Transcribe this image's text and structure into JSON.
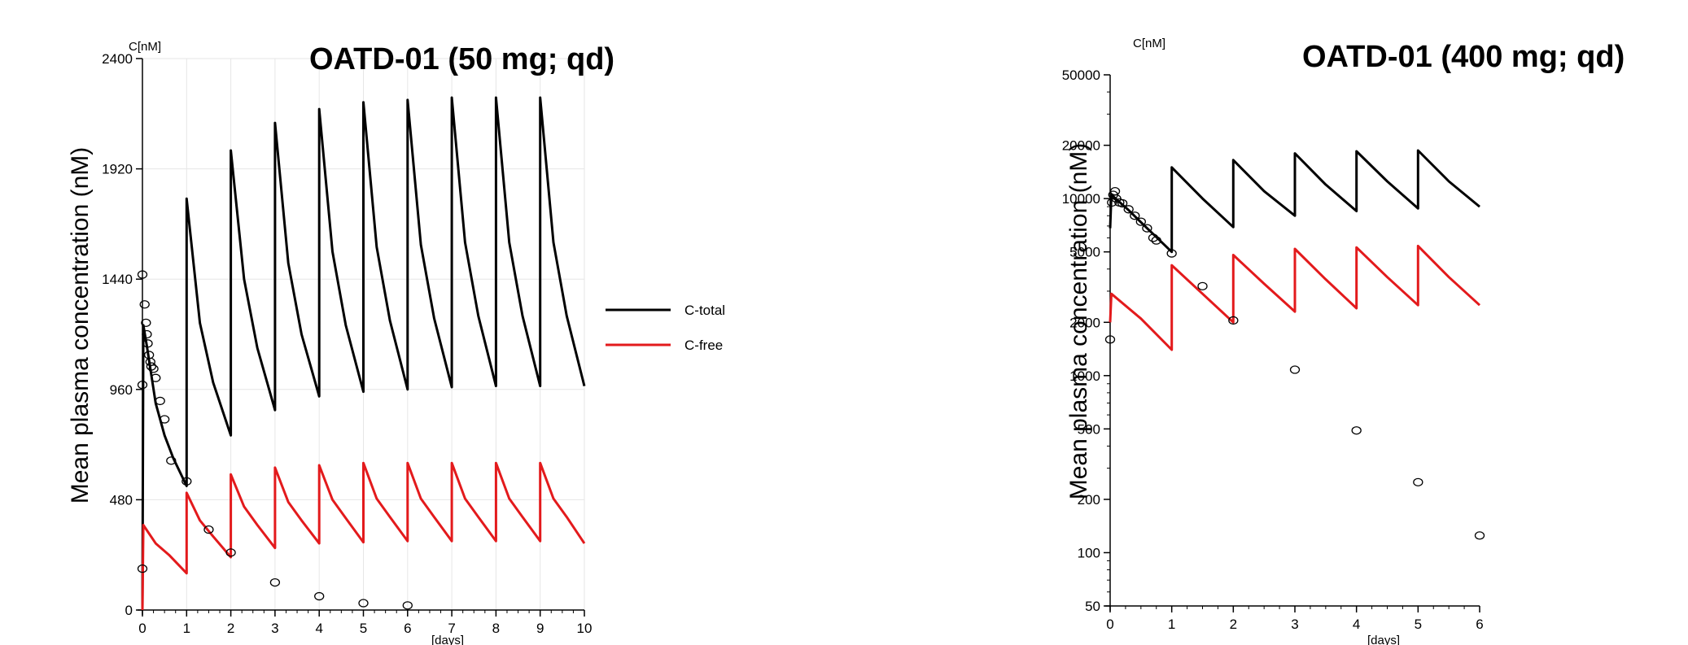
{
  "chart_data": [
    {
      "type": "line",
      "title": "OATD-01 (50 mg; qd)",
      "ylabel": "Mean plasma concentration (nM)",
      "yunit": "C[nM]",
      "xunit": "[days]",
      "xlim": [
        0,
        10
      ],
      "ylim": [
        0,
        2400
      ],
      "yscale": "linear",
      "xticks": [
        "0",
        "1",
        "2",
        "3",
        "4",
        "5",
        "6",
        "7",
        "8",
        "9",
        "10"
      ],
      "yticks": [
        "0",
        "480",
        "960",
        "1440",
        "1920",
        "2400"
      ],
      "grid": true,
      "legend": {
        "position": "right",
        "entries": [
          {
            "label": "C-total",
            "color": "#000000"
          },
          {
            "label": "C-free",
            "color": "#e31a1c"
          }
        ]
      },
      "series": [
        {
          "name": "C-total",
          "color": "#000000",
          "points": [
            [
              0,
              0
            ],
            [
              0.02,
              1240
            ],
            [
              0.1,
              1150
            ],
            [
              0.3,
              900
            ],
            [
              0.5,
              760
            ],
            [
              0.7,
              660
            ],
            [
              1.0,
              540
            ],
            [
              1.0,
              1790
            ],
            [
              1.3,
              1250
            ],
            [
              1.6,
              990
            ],
            [
              2.0,
              760
            ],
            [
              2.0,
              2000
            ],
            [
              2.3,
              1440
            ],
            [
              2.6,
              1140
            ],
            [
              3.0,
              870
            ],
            [
              3.0,
              2120
            ],
            [
              3.3,
              1510
            ],
            [
              3.6,
              1200
            ],
            [
              4.0,
              930
            ],
            [
              4.0,
              2180
            ],
            [
              4.3,
              1560
            ],
            [
              4.6,
              1240
            ],
            [
              5.0,
              950
            ],
            [
              5.0,
              2210
            ],
            [
              5.3,
              1580
            ],
            [
              5.6,
              1260
            ],
            [
              6.0,
              960
            ],
            [
              6.0,
              2220
            ],
            [
              6.3,
              1590
            ],
            [
              6.6,
              1270
            ],
            [
              7.0,
              970
            ],
            [
              7.0,
              2230
            ],
            [
              7.3,
              1600
            ],
            [
              7.6,
              1280
            ],
            [
              8.0,
              975
            ],
            [
              8.0,
              2230
            ],
            [
              8.3,
              1600
            ],
            [
              8.6,
              1280
            ],
            [
              9.0,
              975
            ],
            [
              9.0,
              2230
            ],
            [
              9.3,
              1600
            ],
            [
              9.6,
              1280
            ],
            [
              10.0,
              975
            ]
          ]
        },
        {
          "name": "C-free",
          "color": "#e31a1c",
          "points": [
            [
              0,
              0
            ],
            [
              0.02,
              370
            ],
            [
              0.3,
              290
            ],
            [
              0.6,
              240
            ],
            [
              1.0,
              160
            ],
            [
              1.0,
              510
            ],
            [
              1.3,
              390
            ],
            [
              1.6,
              320
            ],
            [
              2.0,
              230
            ],
            [
              2.0,
              590
            ],
            [
              2.3,
              450
            ],
            [
              2.6,
              370
            ],
            [
              3.0,
              270
            ],
            [
              3.0,
              620
            ],
            [
              3.3,
              470
            ],
            [
              3.6,
              390
            ],
            [
              4.0,
              290
            ],
            [
              4.0,
              630
            ],
            [
              4.3,
              480
            ],
            [
              4.6,
              400
            ],
            [
              5.0,
              295
            ],
            [
              5.0,
              640
            ],
            [
              5.3,
              485
            ],
            [
              5.6,
              405
            ],
            [
              6.0,
              300
            ],
            [
              6.0,
              640
            ],
            [
              6.3,
              485
            ],
            [
              6.6,
              405
            ],
            [
              7.0,
              300
            ],
            [
              7.0,
              640
            ],
            [
              7.3,
              485
            ],
            [
              7.6,
              405
            ],
            [
              8.0,
              300
            ],
            [
              8.0,
              640
            ],
            [
              8.3,
              485
            ],
            [
              8.6,
              405
            ],
            [
              9.0,
              300
            ],
            [
              9.0,
              640
            ],
            [
              9.3,
              485
            ],
            [
              9.6,
              405
            ],
            [
              10.0,
              290
            ]
          ]
        },
        {
          "name": "observed",
          "marker": "circle",
          "points": [
            [
              0.0,
              1460
            ],
            [
              0.05,
              1330
            ],
            [
              0.08,
              1250
            ],
            [
              0.1,
              1200
            ],
            [
              0.12,
              1160
            ],
            [
              0.15,
              1110
            ],
            [
              0.18,
              1080
            ],
            [
              0.2,
              1060
            ],
            [
              0.25,
              1050
            ],
            [
              0.3,
              1010
            ],
            [
              0.4,
              910
            ],
            [
              0.5,
              830
            ],
            [
              0.65,
              650
            ],
            [
              1.0,
              560
            ],
            [
              1.5,
              350
            ],
            [
              2.0,
              250
            ],
            [
              3.0,
              120
            ],
            [
              4.0,
              60
            ],
            [
              5.0,
              30
            ],
            [
              6.0,
              20
            ],
            [
              0.0,
              980
            ],
            [
              0.0,
              180
            ]
          ]
        }
      ]
    },
    {
      "type": "line",
      "title": "OATD-01 (400 mg; qd)",
      "ylabel": "Mean plasma concentration (nM)",
      "yunit": "C[nM]",
      "xunit": "[days]",
      "xlim": [
        0,
        6
      ],
      "ylim": [
        50,
        50000
      ],
      "yscale": "log",
      "xticks": [
        "0",
        "1",
        "2",
        "3",
        "4",
        "5",
        "6"
      ],
      "yticks": [
        "50",
        "100",
        "200",
        "500",
        "1000",
        "2000",
        "5000",
        "10000",
        "20000",
        "50000"
      ],
      "grid": false,
      "series": [
        {
          "name": "C-total",
          "color": "#000000",
          "points": [
            [
              0,
              6800
            ],
            [
              0.02,
              10500
            ],
            [
              0.3,
              8600
            ],
            [
              0.6,
              6800
            ],
            [
              1.0,
              5000
            ],
            [
              1.0,
              15000
            ],
            [
              1.5,
              10000
            ],
            [
              2.0,
              6900
            ],
            [
              2.0,
              16500
            ],
            [
              2.5,
              11000
            ],
            [
              3.0,
              8000
            ],
            [
              3.0,
              18000
            ],
            [
              3.5,
              12000
            ],
            [
              4.0,
              8500
            ],
            [
              4.0,
              18500
            ],
            [
              4.5,
              12500
            ],
            [
              5.0,
              8800
            ],
            [
              5.0,
              18700
            ],
            [
              5.5,
              12500
            ],
            [
              6.0,
              9000
            ]
          ]
        },
        {
          "name": "C-free",
          "color": "#e31a1c",
          "points": [
            [
              0,
              2000
            ],
            [
              0.02,
              2900
            ],
            [
              0.5,
              2100
            ],
            [
              1.0,
              1400
            ],
            [
              1.0,
              4200
            ],
            [
              1.5,
              2900
            ],
            [
              2.0,
              2000
            ],
            [
              2.0,
              4800
            ],
            [
              2.5,
              3300
            ],
            [
              3.0,
              2300
            ],
            [
              3.0,
              5200
            ],
            [
              3.5,
              3500
            ],
            [
              4.0,
              2400
            ],
            [
              4.0,
              5300
            ],
            [
              4.5,
              3600
            ],
            [
              5.0,
              2500
            ],
            [
              5.0,
              5400
            ],
            [
              5.5,
              3600
            ],
            [
              6.0,
              2500
            ]
          ]
        },
        {
          "name": "observed",
          "marker": "circle",
          "points": [
            [
              0.0,
              1600
            ],
            [
              0.03,
              9500
            ],
            [
              0.05,
              10500
            ],
            [
              0.08,
              11000
            ],
            [
              0.1,
              10000
            ],
            [
              0.15,
              9500
            ],
            [
              0.2,
              9400
            ],
            [
              0.3,
              8700
            ],
            [
              0.4,
              8000
            ],
            [
              0.5,
              7400
            ],
            [
              0.6,
              6800
            ],
            [
              0.7,
              6000
            ],
            [
              0.75,
              5800
            ],
            [
              1.0,
              4900
            ],
            [
              1.5,
              3200
            ],
            [
              2.0,
              2050
            ],
            [
              3.0,
              1080
            ],
            [
              4.0,
              490
            ],
            [
              5.0,
              250
            ],
            [
              6.0,
              125
            ]
          ]
        }
      ]
    }
  ]
}
